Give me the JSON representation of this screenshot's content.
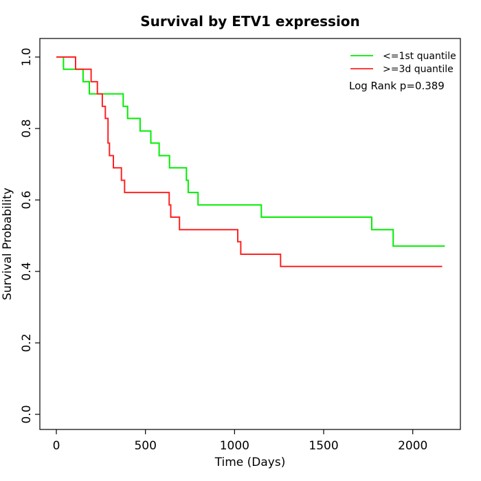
{
  "chart_data": {
    "type": "line",
    "subtype": "kaplan-meier-step",
    "title": "Survival by ETV1 expression",
    "xlabel": "Time (Days)",
    "ylabel": "Survival Probability",
    "xlim": [
      0,
      2267
    ],
    "ylim": [
      0,
      1
    ],
    "grid": false,
    "legend_position": "top-right",
    "annotation": "Log Rank p=0.389",
    "xticks": [
      "0",
      "500",
      "1000",
      "1500",
      "2000"
    ],
    "xtick_values": [
      0,
      500,
      1000,
      1500,
      2000
    ],
    "yticks": [
      "0.0",
      "0.2",
      "0.4",
      "0.6",
      "0.8",
      "1.0"
    ],
    "ytick_values": [
      0,
      0.2,
      0.4,
      0.6,
      0.8,
      1.0
    ],
    "axis_color": "#000000",
    "series": [
      {
        "name": "<=1st quantile",
        "color": "#00ee00",
        "points": [
          [
            0,
            1.0
          ],
          [
            40,
            0.966
          ],
          [
            150,
            0.931
          ],
          [
            185,
            0.897
          ],
          [
            375,
            0.862
          ],
          [
            400,
            0.828
          ],
          [
            470,
            0.793
          ],
          [
            530,
            0.759
          ],
          [
            577,
            0.724
          ],
          [
            635,
            0.69
          ],
          [
            730,
            0.655
          ],
          [
            740,
            0.621
          ],
          [
            795,
            0.586
          ],
          [
            1150,
            0.552
          ],
          [
            1770,
            0.517
          ],
          [
            1890,
            0.471
          ]
        ],
        "end_time": 2180
      },
      {
        "name": ">=3d quantile",
        "color": "#ff2020",
        "points": [
          [
            0,
            1.0
          ],
          [
            108,
            0.966
          ],
          [
            195,
            0.931
          ],
          [
            230,
            0.897
          ],
          [
            258,
            0.862
          ],
          [
            275,
            0.828
          ],
          [
            290,
            0.759
          ],
          [
            298,
            0.724
          ],
          [
            320,
            0.69
          ],
          [
            365,
            0.655
          ],
          [
            383,
            0.621
          ],
          [
            633,
            0.586
          ],
          [
            642,
            0.552
          ],
          [
            691,
            0.517
          ],
          [
            1018,
            0.483
          ],
          [
            1035,
            0.448
          ],
          [
            1258,
            0.414
          ]
        ],
        "end_time": 2165
      }
    ]
  }
}
